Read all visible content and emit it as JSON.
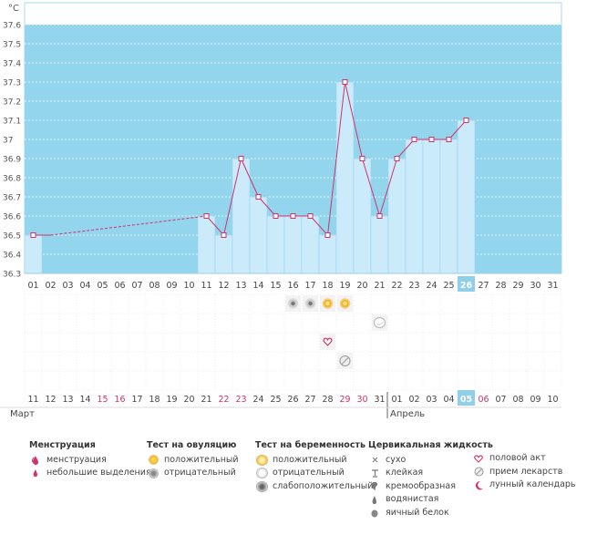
{
  "chart_data": {
    "type": "line",
    "title": "",
    "ylabel": "°C",
    "ylim": [
      36.3,
      37.6
    ],
    "yticks": [
      "36.3",
      "36.4",
      "36.5",
      "36.6",
      "36.7",
      "36.8",
      "36.9",
      "37",
      "37.1",
      "37.2",
      "37.3",
      "37.4",
      "37.5",
      "37.6"
    ],
    "cycle_days": [
      "01",
      "02",
      "03",
      "04",
      "05",
      "06",
      "07",
      "08",
      "09",
      "10",
      "11",
      "12",
      "13",
      "14",
      "15",
      "16",
      "17",
      "18",
      "19",
      "20",
      "21",
      "22",
      "23",
      "24",
      "25",
      "26",
      "27",
      "28",
      "29",
      "30",
      "31"
    ],
    "current_cycle_day_index": 25,
    "series": [
      {
        "name": "temperature",
        "values": [
          36.5,
          null,
          null,
          null,
          null,
          null,
          null,
          null,
          null,
          null,
          36.6,
          36.5,
          36.9,
          36.7,
          36.6,
          36.6,
          36.6,
          36.5,
          37.3,
          36.9,
          36.6,
          36.9,
          37.0,
          37.0,
          37.0,
          37.1,
          null,
          null,
          null,
          null,
          null
        ]
      }
    ],
    "dashed_gap": {
      "from_day_index": 1,
      "to_day_index": 10
    },
    "calendar_dates": [
      "11",
      "12",
      "13",
      "14",
      "15",
      "16",
      "17",
      "18",
      "19",
      "20",
      "21",
      "22",
      "23",
      "24",
      "25",
      "26",
      "27",
      "28",
      "29",
      "30",
      "31",
      "01",
      "02",
      "03",
      "04",
      "05",
      "06",
      "07",
      "08",
      "09",
      "10"
    ],
    "weekend_date_indices": [
      4,
      5,
      11,
      12,
      18,
      19,
      26
    ],
    "current_date_index": 25,
    "month_divider_index": 21,
    "month_labels": [
      "Март",
      "Апрель"
    ],
    "symbol_rows": [
      {
        "row": 0,
        "day_index": 15,
        "symbol": "ovulation-negative"
      },
      {
        "row": 0,
        "day_index": 16,
        "symbol": "ovulation-negative"
      },
      {
        "row": 0,
        "day_index": 17,
        "symbol": "ovulation-positive"
      },
      {
        "row": 0,
        "day_index": 18,
        "symbol": "ovulation-positive"
      },
      {
        "row": 1,
        "day_index": 20,
        "symbol": "pregnancy-negative"
      },
      {
        "row": 2,
        "day_index": 17,
        "symbol": "intercourse"
      },
      {
        "row": 3,
        "day_index": 18,
        "symbol": "medication"
      }
    ]
  },
  "colors": {
    "band": "#94d5ee",
    "bar": "#cbeafa",
    "bar_edge": "#98d3ef",
    "line": "#d0336b",
    "weekend": "#d0336b",
    "current": "#8fcfe9"
  },
  "legend": {
    "menstruation": {
      "title": "Менструация",
      "items": [
        {
          "icon": "menstruation-drop-icon",
          "label": "менструация"
        },
        {
          "icon": "small-drop-icon",
          "label": "небольшие выделения"
        }
      ]
    },
    "ovulation": {
      "title": "Тест на овуляцию",
      "items": [
        {
          "icon": "ovulation-positive-icon",
          "label": "положительный"
        },
        {
          "icon": "ovulation-negative-icon",
          "label": "отрицательный"
        }
      ]
    },
    "pregnancy": {
      "title": "Тест на беременность",
      "items": [
        {
          "icon": "pregnancy-positive-icon",
          "label": "положительный"
        },
        {
          "icon": "pregnancy-negative-icon",
          "label": "отрицательный"
        },
        {
          "icon": "pregnancy-weak-icon",
          "label": "слабоположительный"
        }
      ]
    },
    "cervical": {
      "title": "Цервикальная жидкость",
      "items": [
        {
          "icon": "dry-icon",
          "label": "сухо"
        },
        {
          "icon": "sticky-icon",
          "label": "клейкая"
        },
        {
          "icon": "creamy-icon",
          "label": "кремообразная"
        },
        {
          "icon": "watery-icon",
          "label": "водянистая"
        },
        {
          "icon": "egg-white-icon",
          "label": "яичный белок"
        }
      ]
    },
    "other": {
      "items": [
        {
          "icon": "heart-icon",
          "label": "половой акт"
        },
        {
          "icon": "pill-icon",
          "label": "прием лекарств"
        },
        {
          "icon": "moon-icon",
          "label": "лунный календарь"
        }
      ]
    }
  }
}
